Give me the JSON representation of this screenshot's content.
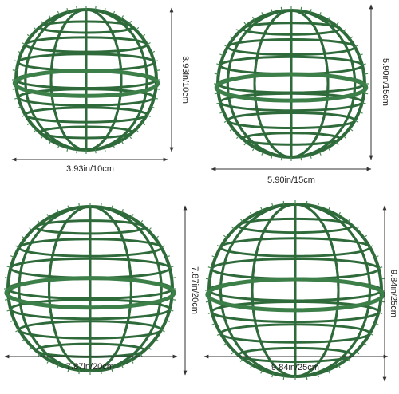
{
  "products": [
    {
      "height_label": "3.93in/10cm",
      "width_label": "3.93in/10cm"
    },
    {
      "height_label": "5.90in/15cm",
      "width_label": "5.90in/15cm"
    },
    {
      "height_label": "7.87in/20cm",
      "width_label": "7.87in/20cm"
    },
    {
      "height_label": "9.84in/25cm",
      "width_label": "9.84in/25cm"
    }
  ]
}
